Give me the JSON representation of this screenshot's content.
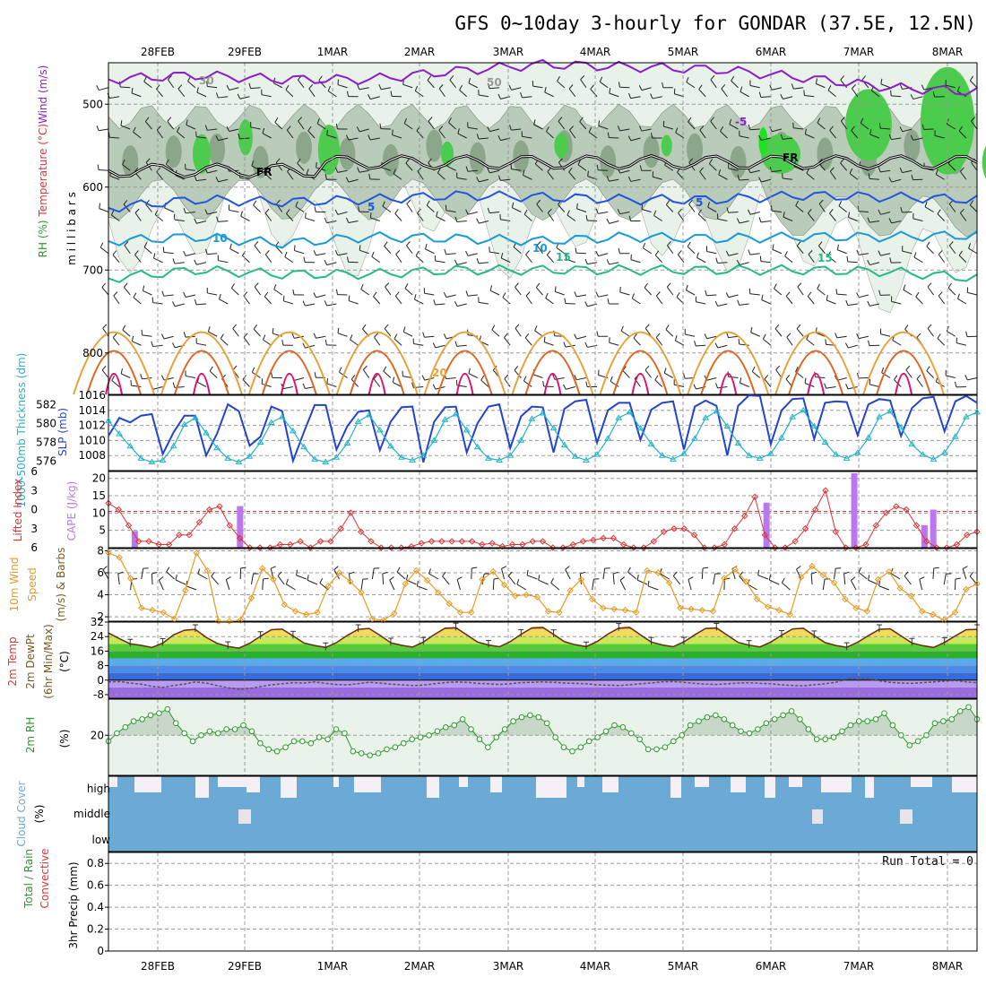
{
  "title": "GFS 0~10day 3-hourly for GONDAR (37.5E, 12.5N)",
  "x_axis": {
    "dates": [
      "28FEB",
      "29FEB",
      "1MAR",
      "2MAR",
      "3MAR",
      "4MAR",
      "5MAR",
      "6MAR",
      "7MAR",
      "8MAR"
    ]
  },
  "colors": {
    "title": "#000000",
    "grid": "#999999",
    "frame": "#000000",
    "rh_light": "#e8f2e8",
    "rh_mid": "#b9ccb9",
    "rh_dark": "#7e9a7e",
    "rh_green": "#4ccc4c",
    "rh_bright": "#22e022",
    "thickness": "#22b2c8",
    "slp": "#2244cc",
    "lifted": "#dd3333",
    "cape": "#bb77ee",
    "wind10": "#e59b22",
    "dewpt": "#777777",
    "rh2m": "#2a9a2a",
    "rh2m_fill": "#c8d8c8",
    "cloud": "#6aaad4",
    "cloud_clear": "#f4f0f6"
  },
  "chart_data": [
    {
      "id": "upper-air",
      "type": "area",
      "ylabel_parts": [
        "RH (%)",
        "Temperature (°C)",
        "Wind (m/s)"
      ],
      "ylabel2": "m i l l i b a r s",
      "y_ticks": [
        500,
        600,
        700,
        800
      ],
      "ylim": [
        450,
        850
      ],
      "contour_labels": [
        "-5",
        "FR",
        "-5",
        "5",
        "5",
        "10",
        "10",
        "15",
        "15",
        "20",
        "30",
        "50"
      ],
      "freezing_level_mb": 575,
      "isotherms_mb": [
        {
          "temp": -5,
          "values": [
            470,
            465,
            470,
            470,
            460,
            452,
            455,
            458,
            468,
            480,
            485
          ]
        },
        {
          "temp": 5,
          "values": [
            625,
            615,
            618,
            615,
            610,
            612,
            615,
            615,
            610,
            612,
            615
          ]
        },
        {
          "temp": 10,
          "values": [
            665,
            660,
            668,
            660,
            662,
            665,
            660,
            662,
            660,
            660,
            658
          ]
        },
        {
          "temp": 15,
          "values": [
            710,
            700,
            705,
            705,
            700,
            700,
            700,
            700,
            700,
            702,
            710
          ]
        }
      ]
    },
    {
      "id": "slp-thickness",
      "type": "line",
      "ylabel_left": "1000-500mb Thickness (dm)",
      "ylabel_right": "SLP (mb)",
      "left_ticks": [
        576,
        578,
        580,
        582
      ],
      "right_ticks": [
        1008,
        1010,
        1012,
        1014,
        1016
      ],
      "ylim_left": [
        575,
        583
      ],
      "ylim_right": [
        1006,
        1016
      ],
      "series": [
        {
          "name": "SLP",
          "axis": "right",
          "values": [
            1010.6,
            1013.0,
            1012.4,
            1013.3,
            1013.5,
            1008.2,
            1011.1,
            1013.3,
            1013.3,
            1008.0,
            1010.9,
            1014.8,
            1013.9,
            1009.3,
            1010.5,
            1014.5,
            1013.9,
            1007.3,
            1011.1,
            1014.7,
            1014.7,
            1008.8,
            1011.9,
            1013.8,
            1014.0,
            1008.7,
            1012.5,
            1014.4,
            1014.5,
            1007.1,
            1012.5,
            1014.4,
            1014.5,
            1008.4,
            1012.3,
            1014.5,
            1014.8,
            1009.0,
            1013.2,
            1014.5,
            1014.4,
            1008.4,
            1014.2,
            1015.2,
            1015.4,
            1009.7,
            1014.0,
            1015.0,
            1015.0,
            1010.1,
            1014.1,
            1015.0,
            1015.2,
            1008.8,
            1014.5,
            1015.3,
            1014.6,
            1008.0,
            1014.6,
            1016.0,
            1015.9,
            1009.5,
            1014.0,
            1015.5,
            1015.6,
            1010.2,
            1015.0,
            1015.2,
            1015.1,
            1010.7,
            1014.8,
            1015.5,
            1015.3,
            1010.6,
            1014.3,
            1015.6,
            1015.8,
            1011.2,
            1015.2,
            1015.9,
            1015.0
          ]
        },
        {
          "name": "Thickness",
          "axis": "left",
          "values": [
            580.3,
            578.9,
            577.6,
            576.3,
            575.9,
            576.1,
            577.6,
            579.9,
            580.6,
            579.0,
            577.4,
            576.3,
            575.9,
            576.5,
            578.0,
            580.1,
            580.7,
            579.2,
            577.5,
            576.2,
            575.9,
            576.4,
            577.9,
            580.2,
            580.9,
            579.3,
            577.6,
            576.4,
            576.1,
            576.6,
            578.2,
            580.4,
            581.0,
            579.3,
            577.5,
            576.3,
            576.1,
            576.6,
            578.2,
            580.5,
            581.1,
            579.5,
            577.7,
            576.5,
            576.1,
            576.7,
            578.4,
            580.6,
            581.2,
            579.5,
            577.8,
            576.6,
            576.2,
            576.8,
            578.4,
            580.6,
            581.3,
            579.7,
            577.9,
            576.6,
            576.3,
            576.8,
            578.5,
            580.7,
            581.4,
            579.7,
            578.0,
            576.7,
            576.3,
            576.9,
            578.5,
            580.7,
            581.3,
            579.6,
            577.8,
            576.7,
            576.2,
            576.9,
            578.6,
            580.7,
            581.2
          ]
        }
      ]
    },
    {
      "id": "lifted-cape",
      "type": "bar",
      "ylabel_left": "Lifted Index",
      "ylabel_right": "CAPE (J/kg)",
      "left_ticks": [
        -6,
        -3,
        0,
        3,
        6
      ],
      "right_ticks": [
        5,
        10,
        15,
        20
      ],
      "ylim_left": [
        -6,
        6
      ],
      "ylim_right": [
        0,
        22
      ],
      "cape_bars": [
        {
          "t": 0.3,
          "value": 4.8
        },
        {
          "t": 1.5,
          "value": 12.0
        },
        {
          "t": 7.5,
          "value": 13.0
        },
        {
          "t": 8.5,
          "value": 21.5
        },
        {
          "t": 9.3,
          "value": 6.5
        },
        {
          "t": 9.4,
          "value": 11.0
        }
      ],
      "lifted_index": [
        -1.0,
        0.0,
        2.5,
        5.0,
        5.0,
        5.5,
        5.5,
        4.0,
        4.0,
        2.0,
        0.0,
        -0.5,
        2.5,
        4.5,
        6.0,
        6.0,
        6.0,
        5.5,
        5.5,
        5.0,
        6.0,
        5.0,
        5.0,
        3.0,
        0.5,
        3.5,
        5.0,
        6.0,
        6.0,
        6.0,
        5.8,
        5.3,
        5.0,
        5.0,
        5.0,
        5.0,
        5.0,
        5.5,
        5.3,
        5.8,
        5.5,
        5.5,
        5.0,
        5.0,
        6.0,
        6.0,
        5.5,
        5.0,
        4.8,
        4.5,
        4.5,
        5.5,
        6.0,
        6.0,
        5.0,
        3.5,
        3.0,
        3.0,
        4.0,
        6.0,
        6.0,
        5.5,
        3.0,
        1.0,
        -2.0,
        4.0,
        6.0,
        6.0,
        5.0,
        3.0,
        0.0,
        -3.0,
        3.5,
        6.0,
        6.0,
        5.5,
        2.5,
        0.5,
        -0.5,
        0.0,
        2.5,
        5.0,
        6.0,
        6.0,
        5.5,
        4.0,
        3.5
      ]
    },
    {
      "id": "wind10m",
      "type": "line",
      "ylabel": "10m Wind Speed (m/s) & Barbs",
      "y_ticks": [
        2,
        4,
        6,
        8
      ],
      "ylim": [
        1.6,
        8.2
      ],
      "series": [
        {
          "name": "10m Wind",
          "values": [
            7.8,
            7.4,
            5.5,
            2.8,
            2.6,
            2.4,
            1.8,
            4.4,
            7.8,
            6.2,
            1.6,
            1.6,
            1.7,
            3.7,
            6.4,
            5.4,
            3.1,
            2.5,
            2.2,
            2.4,
            4.8,
            6.0,
            5.2,
            4.2,
            1.8,
            1.7,
            2.3,
            5.0,
            6.2,
            5.3,
            4.2,
            3.2,
            2.4,
            2.4,
            5.4,
            6.1,
            4.9,
            3.9,
            4.0,
            3.8,
            2.5,
            2.4,
            4.4,
            5.4,
            3.6,
            2.8,
            2.7,
            2.6,
            2.4,
            6.2,
            6.0,
            5.1,
            2.8,
            2.7,
            2.6,
            2.5,
            5.5,
            6.3,
            5.2,
            3.6,
            2.9,
            2.6,
            2.2,
            5.6,
            6.6,
            5.8,
            5.1,
            3.6,
            2.8,
            2.5,
            5.4,
            6.1,
            4.6,
            3.9,
            2.5,
            2.2,
            1.7,
            2.4,
            4.5,
            5.0
          ]
        }
      ]
    },
    {
      "id": "temp2m",
      "type": "area",
      "ylabel_parts": [
        "2m Temp",
        "2m DewPt",
        "(6hr Min/Max)",
        "(°C)"
      ],
      "y_ticks": [
        -8,
        0,
        8,
        16,
        24,
        32
      ],
      "ylim": [
        -10,
        32
      ],
      "temperature": [
        26.0,
        22.9,
        20.0,
        19.2,
        18.0,
        20.4,
        25.0,
        27.5,
        28.0,
        23.6,
        20.3,
        18.6,
        17.6,
        20.3,
        24.2,
        27.8,
        28.1,
        24.4,
        20.5,
        19.1,
        18.0,
        20.7,
        24.7,
        28.0,
        28.5,
        24.8,
        20.6,
        19.2,
        18.2,
        21.0,
        25.1,
        28.6,
        28.9,
        25.0,
        21.0,
        19.4,
        18.4,
        21.2,
        25.3,
        28.8,
        29.1,
        25.2,
        21.2,
        19.5,
        18.5,
        21.3,
        25.4,
        28.7,
        29.1,
        25.0,
        21.0,
        19.4,
        18.4,
        21.1,
        25.0,
        28.5,
        28.8,
        24.8,
        20.8,
        19.3,
        18.3,
        21.0,
        24.8,
        28.2,
        28.6,
        24.6,
        20.7,
        19.1,
        18.1,
        20.9,
        24.6,
        28.0,
        28.3,
        24.4,
        20.5,
        19.0,
        18.0,
        20.8,
        24.4,
        27.8,
        28.0
      ],
      "dewpoint": [
        -1.0,
        -0.8,
        -1.6,
        -2.2,
        -3.4,
        -4.0,
        -3.0,
        -2.2,
        -1.0,
        -1.6,
        -3.0,
        -4.2,
        -5.0,
        -4.6,
        -3.6,
        -2.6,
        -2.0,
        -1.4,
        -1.6,
        -1.0,
        -1.8,
        -2.4,
        -2.6,
        -2.0,
        -1.2,
        -1.6,
        -2.2,
        -2.6,
        -3.0,
        -2.8,
        -2.0,
        -1.4,
        -1.0,
        -1.2,
        -1.8,
        -2.0,
        -2.4,
        -2.0,
        -1.4,
        -1.2,
        -1.0,
        -1.2,
        -1.6,
        -1.8,
        -2.0,
        -2.6,
        -2.8,
        -3.0,
        -2.6,
        -2.0,
        -1.6,
        -1.0,
        -0.8,
        -1.2,
        -1.8,
        -2.2,
        -2.4,
        -2.0,
        -1.6,
        -1.4,
        -1.8,
        -2.0,
        -2.6,
        -3.0,
        -3.2,
        -2.6,
        -2.0,
        -1.2,
        0.6,
        1.2,
        0.8,
        -0.4,
        -1.2,
        -1.6,
        -1.8,
        -1.4,
        -1.0,
        -0.6,
        -0.2,
        -1.0,
        -1.4
      ]
    },
    {
      "id": "rh2m",
      "type": "area",
      "ylabel": "2m RH (%)",
      "y_ticks": [
        20
      ],
      "ylim": [
        0,
        38
      ],
      "series": [
        {
          "name": "2m RH",
          "values": [
            17,
            21,
            24,
            27,
            28,
            30,
            31,
            33,
            26,
            21,
            17,
            20,
            22,
            21,
            23,
            23,
            25,
            22,
            16,
            13,
            12,
            14,
            17,
            17,
            16,
            19,
            18,
            23,
            21,
            12,
            11,
            10,
            11,
            13,
            14,
            16,
            18,
            19,
            20,
            22,
            24,
            25,
            28,
            23,
            18,
            14,
            19,
            23,
            27,
            29,
            30,
            29,
            26,
            19,
            14,
            12,
            14,
            17,
            19,
            22,
            25,
            24,
            21,
            18,
            13,
            13,
            14,
            17,
            20,
            25,
            27,
            29,
            30,
            28,
            25,
            22,
            21,
            23,
            26,
            28,
            30,
            32,
            28,
            23,
            18,
            18,
            19,
            22,
            25,
            27,
            27,
            28,
            31,
            25,
            20,
            15,
            17,
            20,
            26,
            27,
            28,
            32,
            34,
            28
          ]
        }
      ]
    },
    {
      "id": "cloud-cover",
      "type": "area",
      "ylabel": "Cloud Cover (%)",
      "tick_labels": [
        "high",
        "middle",
        "low"
      ]
    },
    {
      "id": "precip",
      "type": "bar",
      "ylabel_left": "Total / Rain",
      "ylabel_right": "Convective",
      "ylabel": "3hr Precip (mm)",
      "y_ticks": [
        "0",
        "0.2",
        "0.4",
        "0.6",
        "0.8"
      ],
      "ylim": [
        0,
        0.9
      ],
      "annotation": "Run Total = 0",
      "values": []
    }
  ]
}
